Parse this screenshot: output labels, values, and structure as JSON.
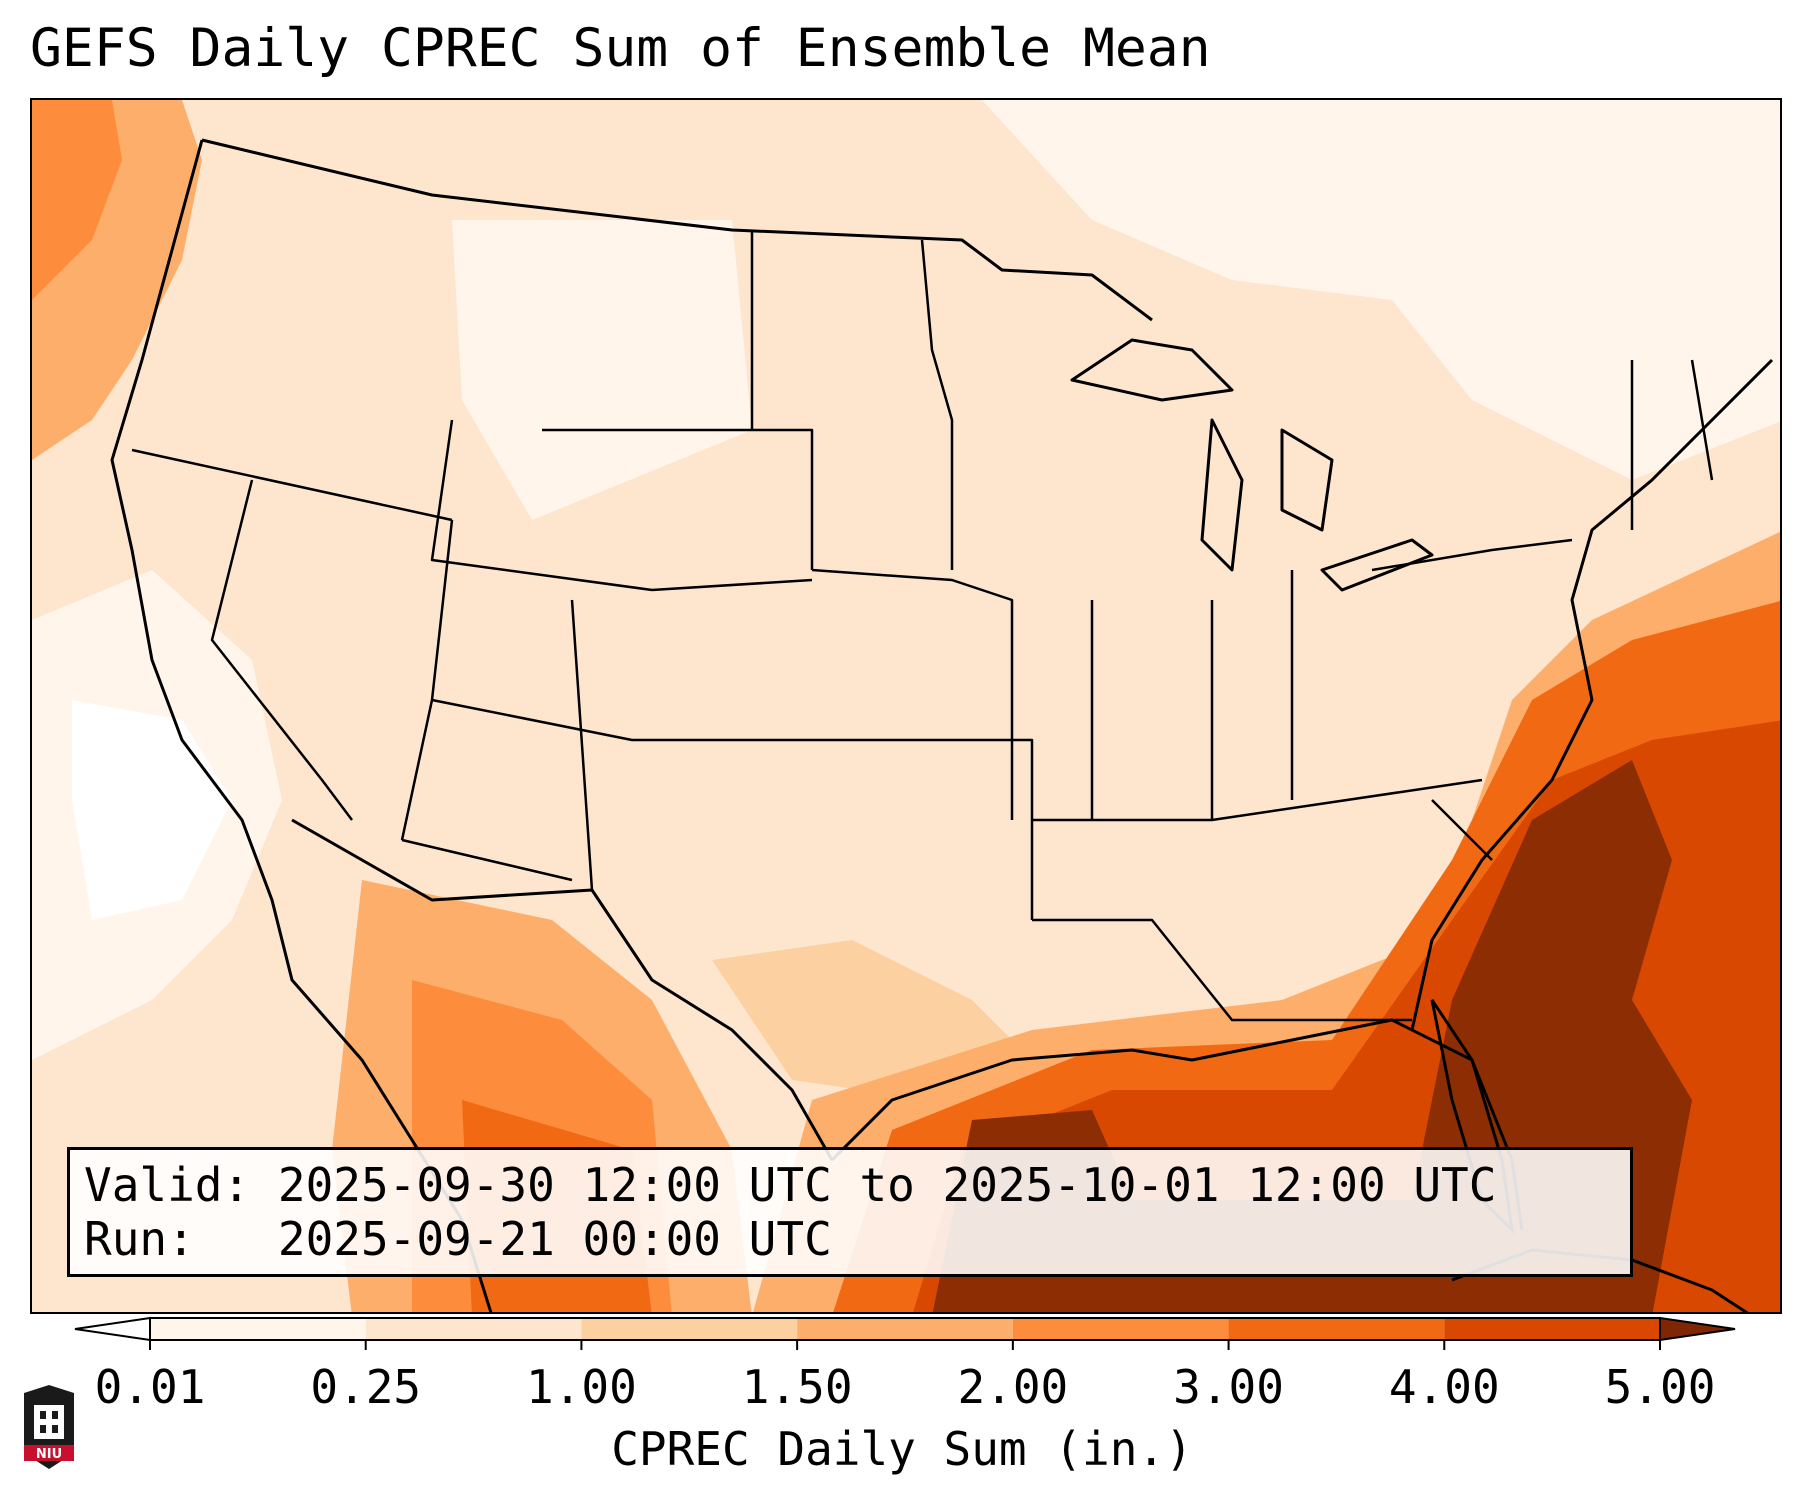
{
  "title": "GEFS Daily CPREC Sum of Ensemble Mean",
  "info": {
    "valid_label": "Valid:",
    "valid_value": "2025-09-30 12:00 UTC to 2025-10-01 12:00 UTC",
    "run_label": "Run:",
    "run_value": "2025-09-21 00:00 UTC"
  },
  "colorbar": {
    "label": "CPREC Daily Sum (in.)",
    "ticks": [
      "0.01",
      "0.25",
      "1.00",
      "1.50",
      "2.00",
      "3.00",
      "4.00",
      "5.00"
    ],
    "colors": [
      "#fff5eb",
      "#fee6ce",
      "#fdd0a2",
      "#fdae6b",
      "#fd8d3c",
      "#f16913",
      "#d94801",
      "#8c2d04"
    ],
    "under_color": "#ffffff",
    "over_color": "#7f2704"
  },
  "logo": {
    "icon": "niu-logo-icon",
    "text": "NIU",
    "color": "#c8102e"
  }
}
